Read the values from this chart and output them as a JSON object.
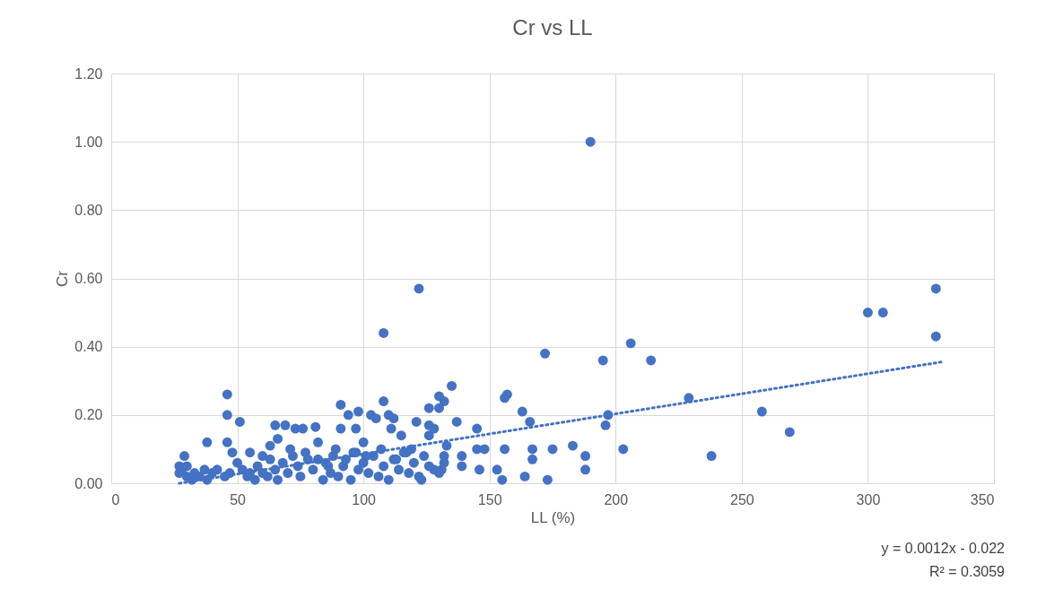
{
  "chart_data": {
    "type": "scatter",
    "title": "Cr vs LL",
    "xlabel": "LL (%)",
    "ylabel": "Cr",
    "xlim": [
      0,
      350
    ],
    "xticks": [
      0,
      50,
      100,
      150,
      200,
      250,
      300,
      350
    ],
    "ylim": [
      0,
      1.2
    ],
    "yticks": [
      {
        "value": 0,
        "label": "0.00"
      },
      {
        "value": 0.2,
        "label": "0.20"
      },
      {
        "value": 0.4,
        "label": "0.40"
      },
      {
        "value": 0.6,
        "label": "0.60"
      },
      {
        "value": 0.8,
        "label": "0.80"
      },
      {
        "value": 1.0,
        "label": "1.00"
      },
      {
        "value": 1.2,
        "label": "1.20"
      }
    ],
    "grid": true,
    "series": [
      {
        "color": "#4472c4",
        "marker": "circle",
        "x": [
          190,
          122,
          108,
          300,
          306,
          327,
          327,
          172,
          195,
          206,
          214,
          229,
          258,
          269,
          238,
          203,
          197,
          196,
          156,
          157,
          163,
          166,
          167,
          167,
          164,
          173,
          175,
          183,
          188,
          188,
          156,
          155,
          153,
          135,
          130,
          132,
          126,
          130,
          137,
          145,
          145,
          148,
          146,
          139,
          139,
          133,
          132,
          131,
          123,
          121,
          126,
          126,
          128,
          108,
          110,
          112,
          111,
          115,
          46,
          46,
          51,
          38,
          46,
          29,
          27,
          48,
          65,
          69,
          73,
          76,
          81,
          91,
          94,
          98,
          91,
          97,
          105,
          103,
          100,
          66,
          63,
          82,
          27,
          28,
          30,
          30,
          32,
          33,
          35,
          37,
          38,
          40,
          42,
          45,
          47,
          50,
          52,
          54,
          55,
          57,
          58,
          60,
          62,
          63,
          65,
          66,
          68,
          70,
          72,
          74,
          75,
          77,
          80,
          82,
          84,
          85,
          87,
          88,
          90,
          92,
          93,
          95,
          97,
          98,
          100,
          102,
          104,
          106,
          108,
          110,
          112,
          114,
          116,
          118,
          120,
          122,
          124,
          126,
          128,
          130,
          132,
          55,
          60,
          71,
          78,
          86,
          89,
          96,
          101,
          107,
          113,
          117,
          119
        ],
        "values": [
          1.0,
          0.57,
          0.44,
          0.5,
          0.5,
          0.57,
          0.43,
          0.38,
          0.36,
          0.41,
          0.36,
          0.25,
          0.21,
          0.15,
          0.08,
          0.1,
          0.2,
          0.17,
          0.25,
          0.26,
          0.21,
          0.18,
          0.1,
          0.07,
          0.02,
          0.01,
          0.1,
          0.11,
          0.08,
          0.04,
          0.1,
          0.01,
          0.04,
          0.285,
          0.255,
          0.24,
          0.22,
          0.22,
          0.18,
          0.16,
          0.1,
          0.1,
          0.04,
          0.08,
          0.05,
          0.11,
          0.08,
          0.04,
          0.01,
          0.18,
          0.17,
          0.14,
          0.16,
          0.24,
          0.2,
          0.19,
          0.16,
          0.14,
          0.26,
          0.2,
          0.18,
          0.12,
          0.12,
          0.08,
          0.05,
          0.09,
          0.17,
          0.17,
          0.16,
          0.16,
          0.165,
          0.23,
          0.2,
          0.21,
          0.16,
          0.16,
          0.19,
          0.2,
          0.12,
          0.13,
          0.11,
          0.12,
          0.03,
          0.04,
          0.02,
          0.05,
          0.01,
          0.03,
          0.02,
          0.04,
          0.01,
          0.03,
          0.04,
          0.02,
          0.03,
          0.06,
          0.04,
          0.02,
          0.03,
          0.01,
          0.05,
          0.03,
          0.02,
          0.07,
          0.04,
          0.01,
          0.06,
          0.03,
          0.08,
          0.05,
          0.02,
          0.09,
          0.04,
          0.07,
          0.01,
          0.06,
          0.03,
          0.08,
          0.02,
          0.05,
          0.07,
          0.01,
          0.09,
          0.04,
          0.06,
          0.03,
          0.08,
          0.02,
          0.05,
          0.01,
          0.07,
          0.04,
          0.09,
          0.03,
          0.06,
          0.02,
          0.08,
          0.05,
          0.04,
          0.03,
          0.06,
          0.09,
          0.08,
          0.1,
          0.07,
          0.05,
          0.1,
          0.09,
          0.08,
          0.1,
          0.07,
          0.09,
          0.1
        ]
      },
      {
        "type": "line",
        "color": "#4472c4",
        "line_style": "dotted",
        "marker": "none",
        "x": [
          27,
          329
        ],
        "values": [
          0.0,
          0.355
        ]
      }
    ],
    "annotations": [
      "y = 0.0012x - 0.022",
      "R² = 0.3059"
    ]
  }
}
